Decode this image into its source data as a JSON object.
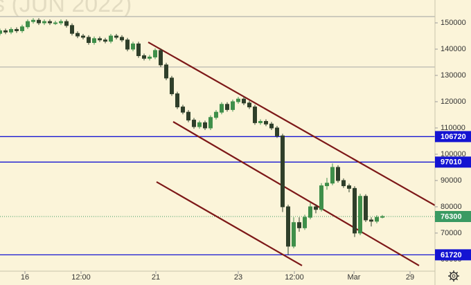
{
  "chart_data": {
    "type": "candlestick",
    "watermark": "s (JUN 2022)",
    "up_color": "#3f8f4a",
    "down_color": "#2f3f2a",
    "trend_color": "#7d1818",
    "xlim": [
      0,
      157
    ],
    "xticks": [
      {
        "value": 9,
        "label": "16"
      },
      {
        "value": 29.25,
        "label": "12:00"
      },
      {
        "value": 56.25,
        "label": "21"
      },
      {
        "value": 86,
        "label": "23"
      },
      {
        "value": 106.25,
        "label": "12:00"
      },
      {
        "value": 127.75,
        "label": "Mar"
      },
      {
        "value": 148,
        "label": "29"
      }
    ],
    "ylim": [
      55500,
      158700
    ],
    "yticks": [
      60000,
      70000,
      80000,
      90000,
      100000,
      110000,
      120000,
      130000,
      140000,
      150000
    ],
    "x": [
      0,
      2,
      4,
      6,
      8,
      10,
      12,
      14,
      16,
      18,
      20,
      22,
      24,
      26,
      28,
      30,
      32,
      34,
      36,
      38,
      40,
      42,
      44,
      46,
      48,
      50,
      52,
      54,
      56,
      58,
      60,
      62,
      64,
      66,
      68,
      70,
      72,
      74,
      76,
      78,
      80,
      82,
      84,
      86,
      88,
      90,
      92,
      94,
      96,
      98,
      100,
      102,
      104,
      106,
      108,
      110,
      112,
      114,
      116,
      118,
      120,
      122,
      124,
      126,
      128,
      130,
      132,
      134,
      136,
      138
    ],
    "open": [
      146000,
      147000,
      146500,
      147500,
      147000,
      148500,
      150500,
      151000,
      150000,
      150500,
      150000,
      150000,
      150500,
      149000,
      146000,
      145000,
      144500,
      142500,
      144000,
      143500,
      143000,
      145000,
      144500,
      143500,
      140000,
      142000,
      137500,
      136500,
      137000,
      139500,
      134000,
      129000,
      123000,
      118000,
      116000,
      113000,
      110500,
      112000,
      110000,
      114000,
      116000,
      119000,
      117000,
      120000,
      121000,
      119500,
      118000,
      112000,
      112500,
      111500,
      110000,
      107000,
      80000,
      65000,
      74000,
      72000,
      76000,
      80000,
      79000,
      88000,
      89000,
      95000,
      90000,
      88000,
      87000,
      70000,
      84000,
      75000,
      74500,
      76000
    ],
    "high": [
      147800,
      147800,
      148300,
      148300,
      149300,
      151300,
      151800,
      151800,
      151300,
      151300,
      150800,
      151300,
      151300,
      149800,
      146800,
      145800,
      145300,
      144800,
      144800,
      144300,
      145800,
      145800,
      145300,
      144300,
      142800,
      142800,
      138300,
      137800,
      140300,
      140300,
      134800,
      129800,
      123800,
      118800,
      116800,
      113800,
      112800,
      112800,
      114800,
      116800,
      119800,
      119800,
      120800,
      121800,
      121800,
      120300,
      118800,
      113300,
      113300,
      112300,
      110800,
      107800,
      80800,
      76000,
      76000,
      77000,
      81500,
      81000,
      89000,
      91000,
      96500,
      95800,
      90800,
      88800,
      87800,
      85000,
      84800,
      76000,
      76800,
      76900
    ],
    "low": [
      145200,
      145700,
      145700,
      146200,
      146200,
      147700,
      149700,
      149200,
      149200,
      149200,
      149200,
      149200,
      148200,
      145200,
      144200,
      143700,
      141700,
      141700,
      142700,
      142200,
      142200,
      143700,
      142700,
      139200,
      139200,
      136700,
      135700,
      135700,
      136200,
      133200,
      128200,
      122200,
      117200,
      115200,
      112200,
      109700,
      109700,
      109200,
      109200,
      113200,
      115200,
      116200,
      116200,
      119200,
      118700,
      117200,
      111200,
      111200,
      110700,
      109200,
      106200,
      78000,
      61720,
      64200,
      70500,
      71200,
      75200,
      77500,
      78200,
      86500,
      88200,
      89200,
      87200,
      85500,
      68500,
      69200,
      74200,
      72500,
      73700,
      75600
    ],
    "close": [
      147000,
      146500,
      147500,
      147000,
      148500,
      150500,
      151000,
      150000,
      150500,
      150000,
      150000,
      150500,
      149000,
      146000,
      145000,
      144500,
      142500,
      144000,
      143500,
      143000,
      145000,
      144500,
      143500,
      140000,
      142000,
      137500,
      136500,
      137000,
      139500,
      134000,
      129000,
      123000,
      118000,
      116000,
      113000,
      110500,
      112000,
      110000,
      114000,
      116000,
      119000,
      117000,
      120000,
      121000,
      119500,
      118000,
      112000,
      112500,
      111500,
      110000,
      107000,
      80000,
      65000,
      74000,
      72000,
      76000,
      80000,
      79000,
      88000,
      89000,
      95000,
      90000,
      88000,
      87000,
      70000,
      84000,
      75000,
      74500,
      76000,
      76300
    ],
    "hlines": [
      {
        "value": 152400,
        "color": "#b8b8b0"
      },
      {
        "value": 133200,
        "color": "#b8b8b0"
      },
      {
        "value": 106720,
        "color": "#1414d2"
      },
      {
        "value": 97010,
        "color": "#1414d2"
      },
      {
        "value": 61720,
        "color": "#1414d2"
      },
      {
        "value": 76300,
        "color": "#3a9a62",
        "dashed": true
      }
    ],
    "price_labels": [
      {
        "value": 106720,
        "color": "#1414d2"
      },
      {
        "value": 97010,
        "color": "#1414d2"
      },
      {
        "value": 76300,
        "color": "#3a9a62"
      },
      {
        "value": 61720,
        "color": "#1414d2"
      }
    ],
    "trend_lines": [
      {
        "x": [
          53.5,
          157
        ],
        "y": [
          142632,
          80526
        ]
      },
      {
        "x": [
          62.5,
          151.25
        ],
        "y": [
          112368,
          57632
        ]
      },
      {
        "x": [
          56.5,
          109
        ],
        "y": [
          89474,
          57632
        ]
      }
    ]
  }
}
